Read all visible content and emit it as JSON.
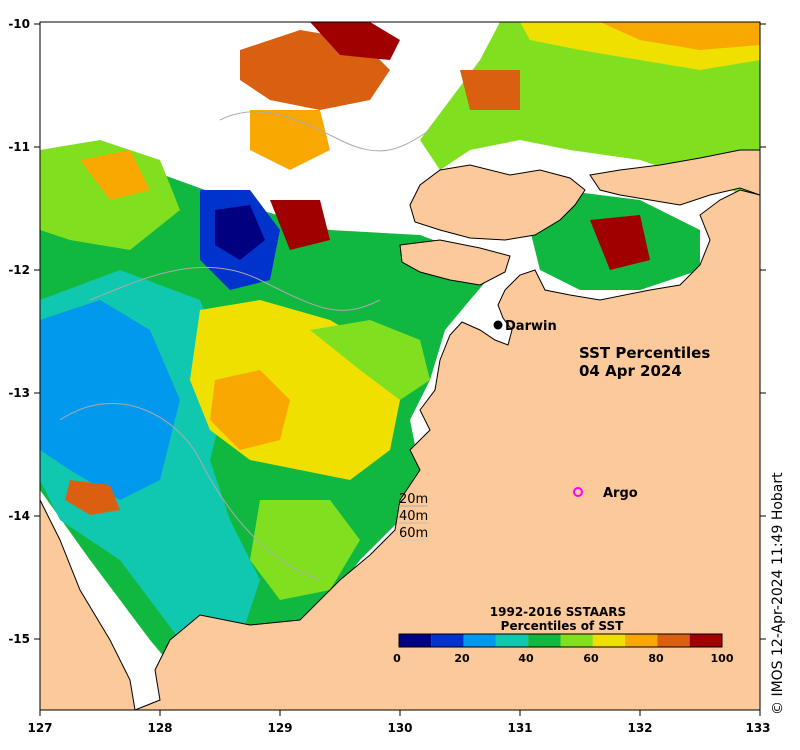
{
  "map": {
    "title": {
      "line1": "SST Percentiles",
      "line2": "04 Apr 2024"
    },
    "x_axis": {
      "ticks": [
        "127",
        "128",
        "129",
        "130",
        "131",
        "132",
        "133"
      ]
    },
    "y_axis": {
      "ticks": [
        "-10",
        "-11",
        "-12",
        "-13",
        "-14",
        "-15"
      ]
    },
    "places": [
      {
        "label": "Darwin",
        "marker": "filled-circle",
        "color": "#000000"
      },
      {
        "label": "Argo",
        "marker": "open-circle",
        "color": "#ff00ff"
      }
    ],
    "depth_contours": [
      "20m",
      "40m",
      "60m"
    ],
    "legend": {
      "title_line1": "1992-2016 SSTAARS",
      "title_line2": "Percentiles of SST",
      "ticks": [
        "0",
        "20",
        "40",
        "60",
        "80",
        "100"
      ],
      "colors": [
        "#000080",
        "#0033cc",
        "#0099ee",
        "#10c8b0",
        "#10b840",
        "#80e020",
        "#f0e000",
        "#f8a800",
        "#d86010",
        "#a00000"
      ]
    },
    "land_color": "#fcc99a",
    "credit": "© IMOS 12-Apr-2024 11:49 Hobart"
  }
}
